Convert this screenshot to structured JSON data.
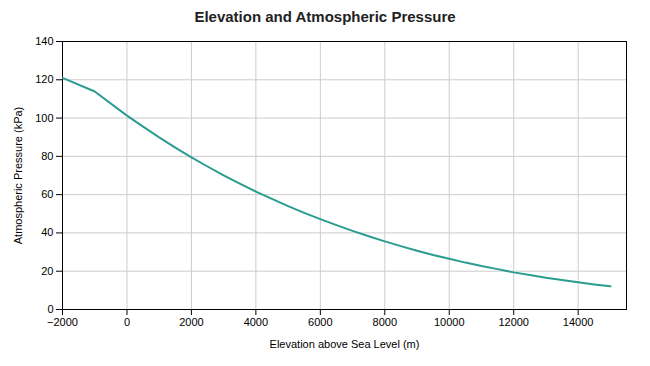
{
  "chart_data": {
    "type": "line",
    "title": "Elevation and Atmospheric Pressure",
    "xlabel": "Elevation above Sea Level (m)",
    "ylabel": "Atmospheric Pressure (kPa)",
    "x": [
      -2000,
      -1000,
      0,
      500,
      1000,
      1500,
      2000,
      2500,
      3000,
      3500,
      4000,
      4500,
      5000,
      5500,
      6000,
      6500,
      7000,
      7500,
      8000,
      8500,
      9000,
      9500,
      10000,
      10500,
      11000,
      11500,
      12000,
      12500,
      13000,
      13500,
      14000,
      14500,
      15000
    ],
    "values": [
      121.0,
      113.9,
      101.3,
      95.5,
      89.9,
      84.6,
      79.5,
      74.7,
      70.1,
      65.8,
      61.6,
      57.8,
      54.0,
      50.5,
      47.2,
      44.1,
      41.1,
      38.3,
      35.6,
      33.1,
      30.7,
      28.5,
      26.5,
      24.5,
      22.7,
      21.1,
      19.4,
      18.0,
      16.6,
      15.4,
      14.2,
      13.1,
      12.1
    ],
    "color": "#2a9d8f",
    "xlim": [
      -2000,
      15500
    ],
    "ylim": [
      0,
      140
    ],
    "xticks": [
      -2000,
      0,
      2000,
      4000,
      6000,
      8000,
      10000,
      12000,
      14000
    ],
    "yticks": [
      0,
      20,
      40,
      60,
      80,
      100,
      120,
      140
    ],
    "grid": true
  }
}
